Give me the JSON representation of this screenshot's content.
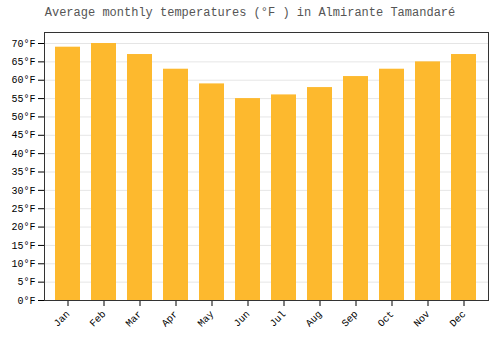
{
  "chart_data": {
    "type": "bar",
    "title": "Average monthly temperatures (°F ) in Almirante Tamandaré",
    "categories": [
      "Jan",
      "Feb",
      "Mar",
      "Apr",
      "May",
      "Jun",
      "Jul",
      "Aug",
      "Sep",
      "Oct",
      "Nov",
      "Dec"
    ],
    "values": [
      69,
      70,
      67,
      63,
      59,
      55,
      56,
      58,
      61,
      63,
      65,
      67
    ],
    "color": "#FDB92E",
    "ylim": [
      0,
      73
    ],
    "yticks": [
      {
        "value": 0,
        "label": "0°F"
      },
      {
        "value": 5,
        "label": "5°F"
      },
      {
        "value": 10,
        "label": "10°F"
      },
      {
        "value": 15,
        "label": "15°F"
      },
      {
        "value": 20,
        "label": "20°F"
      },
      {
        "value": 25,
        "label": "25°F"
      },
      {
        "value": 30,
        "label": "30°F"
      },
      {
        "value": 35,
        "label": "35°F"
      },
      {
        "value": 40,
        "label": "40°F"
      },
      {
        "value": 45,
        "label": "45°F"
      },
      {
        "value": 50,
        "label": "50°F"
      },
      {
        "value": 55,
        "label": "55°F"
      },
      {
        "value": 60,
        "label": "60°F"
      },
      {
        "value": 65,
        "label": "65°F"
      },
      {
        "value": 70,
        "label": "70°F"
      }
    ],
    "grid": true
  }
}
